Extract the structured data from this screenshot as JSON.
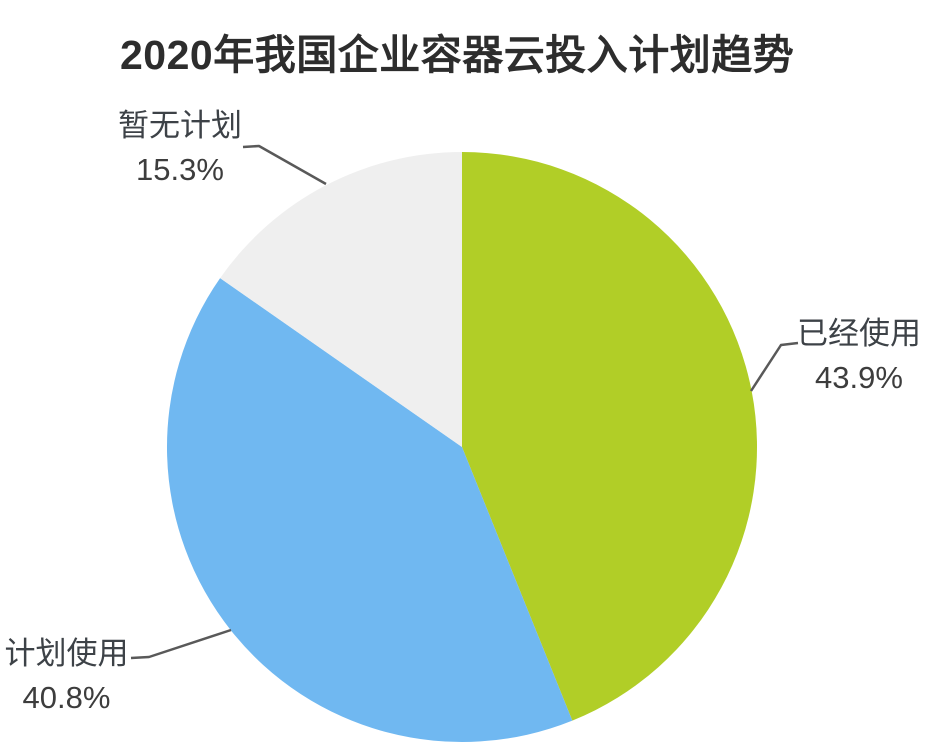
{
  "chart_data": {
    "type": "pie",
    "title": "2020年我国企业容器云投入计划趋势",
    "slices": [
      {
        "label": "已经使用",
        "value": 43.9,
        "pct_label": "43.9%",
        "color": "#b1ce27"
      },
      {
        "label": "计划使用",
        "value": 40.8,
        "pct_label": "40.8%",
        "color": "#70b8f1"
      },
      {
        "label": "暂无计划",
        "value": 15.3,
        "pct_label": "15.3%",
        "color": "#efefef"
      }
    ],
    "start_angle_deg": 0,
    "direction": "clockwise",
    "legend_position": "none",
    "label_style": "outside-with-leader-lines",
    "background_color": "#ffffff",
    "title_color": "#2d2d2d",
    "leader_line_color": "#595959"
  }
}
